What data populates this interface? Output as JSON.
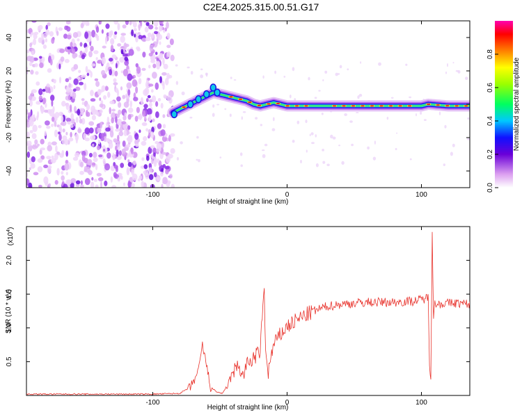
{
  "title": "C2E4.2025.315.00.51.G17",
  "chart_data": [
    {
      "type": "heatmap",
      "name": "spectrogram",
      "xlabel": "Height of straight line (km)",
      "ylabel": "Frequency (Hz)",
      "xlim": [
        -194,
        136
      ],
      "ylim": [
        -50,
        50
      ],
      "x_ticks": [
        -100,
        0,
        100
      ],
      "y_ticks": [
        -40,
        -20,
        0,
        20,
        40
      ],
      "noise_region_x": [
        -194,
        -85
      ],
      "signal_start_x": -85,
      "track": {
        "x": [
          -85,
          -80,
          -75,
          -70,
          -65,
          -60,
          -55,
          -50,
          -45,
          -40,
          -35,
          -30,
          -25,
          -20,
          -15,
          -10,
          -5,
          0,
          10,
          20,
          40,
          60,
          80,
          100,
          105,
          120,
          136
        ],
        "y": [
          -5,
          -3,
          -1,
          1,
          3,
          5,
          7,
          6,
          5,
          4,
          3,
          2,
          0,
          -1,
          0,
          1,
          0,
          -1,
          -1,
          -1,
          -1,
          -1,
          -1,
          -1,
          0,
          -1,
          -1
        ]
      },
      "colorbar": {
        "label": "Normalized spectral amplitude",
        "ticks": [
          0.0,
          0.2,
          0.4,
          0.6,
          0.8
        ],
        "range": [
          0,
          1
        ]
      }
    },
    {
      "type": "line",
      "name": "snr",
      "xlabel": "Height of straight line (km)",
      "ylabel": "SNR (10 * v/v)",
      "y_multiplier": "(x10",
      "y_exponent": "4",
      "xlim": [
        -194,
        136
      ],
      "ylim": [
        0,
        2.5
      ],
      "x_ticks": [
        -100,
        0,
        100
      ],
      "y_ticks": [
        0.5,
        1.0,
        1.5,
        2.0
      ],
      "color": "#e8312a",
      "series": {
        "x": [
          -194,
          -150,
          -100,
          -80,
          -72,
          -66,
          -63,
          -60,
          -57,
          -52,
          -48,
          -45,
          -40,
          -36,
          -33,
          -30,
          -25,
          -20,
          -17,
          -16,
          -14,
          -12,
          -10,
          -5,
          0,
          10,
          20,
          30,
          40,
          60,
          80,
          95,
          100,
          105,
          106,
          107,
          108,
          109,
          110,
          115,
          125,
          136
        ],
        "y": [
          0.02,
          0.02,
          0.02,
          0.03,
          0.12,
          0.35,
          0.75,
          0.45,
          0.12,
          0.05,
          0.03,
          0.12,
          0.35,
          0.45,
          0.28,
          0.45,
          0.55,
          0.65,
          1.65,
          0.6,
          0.35,
          0.55,
          0.75,
          0.9,
          1.02,
          1.15,
          1.25,
          1.32,
          1.35,
          1.38,
          1.38,
          1.4,
          1.42,
          1.45,
          0.5,
          0.25,
          2.45,
          1.2,
          1.35,
          1.36,
          1.37,
          1.35
        ]
      }
    }
  ]
}
